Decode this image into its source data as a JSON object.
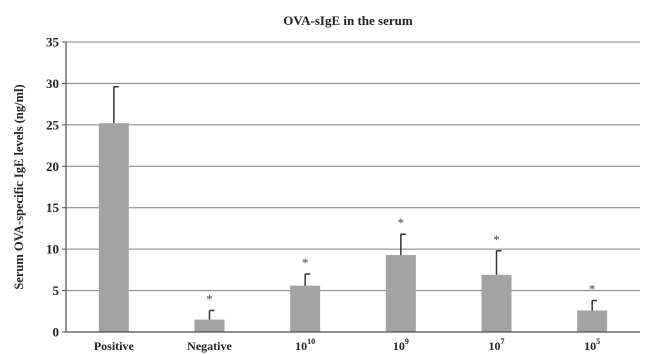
{
  "chart_data": {
    "type": "bar",
    "title": "OVA-sIgE in the serum",
    "ylabel": "Serum OVA-specific IgE levels (ng/ml)",
    "xlabel": "",
    "ylim": [
      0,
      35
    ],
    "yticks": [
      0,
      5,
      10,
      15,
      20,
      25,
      30,
      35
    ],
    "grid": true,
    "categories": [
      {
        "base": "Positive",
        "sup": ""
      },
      {
        "base": "Negative",
        "sup": ""
      },
      {
        "base": "10",
        "sup": "10"
      },
      {
        "base": "10",
        "sup": "9"
      },
      {
        "base": "10",
        "sup": "7"
      },
      {
        "base": "10",
        "sup": "5"
      }
    ],
    "values": [
      25.2,
      1.5,
      5.6,
      9.3,
      6.9,
      2.6
    ],
    "error_upper": [
      29.6,
      2.6,
      7.0,
      11.8,
      9.8,
      3.8
    ],
    "annotations": [
      "",
      "*",
      "*",
      "*",
      "*",
      "*"
    ],
    "colors": {
      "bar": "#a3a3a3",
      "grid": "#7f7f7f",
      "axis": "#4d4d4d",
      "error": "#333333"
    }
  }
}
